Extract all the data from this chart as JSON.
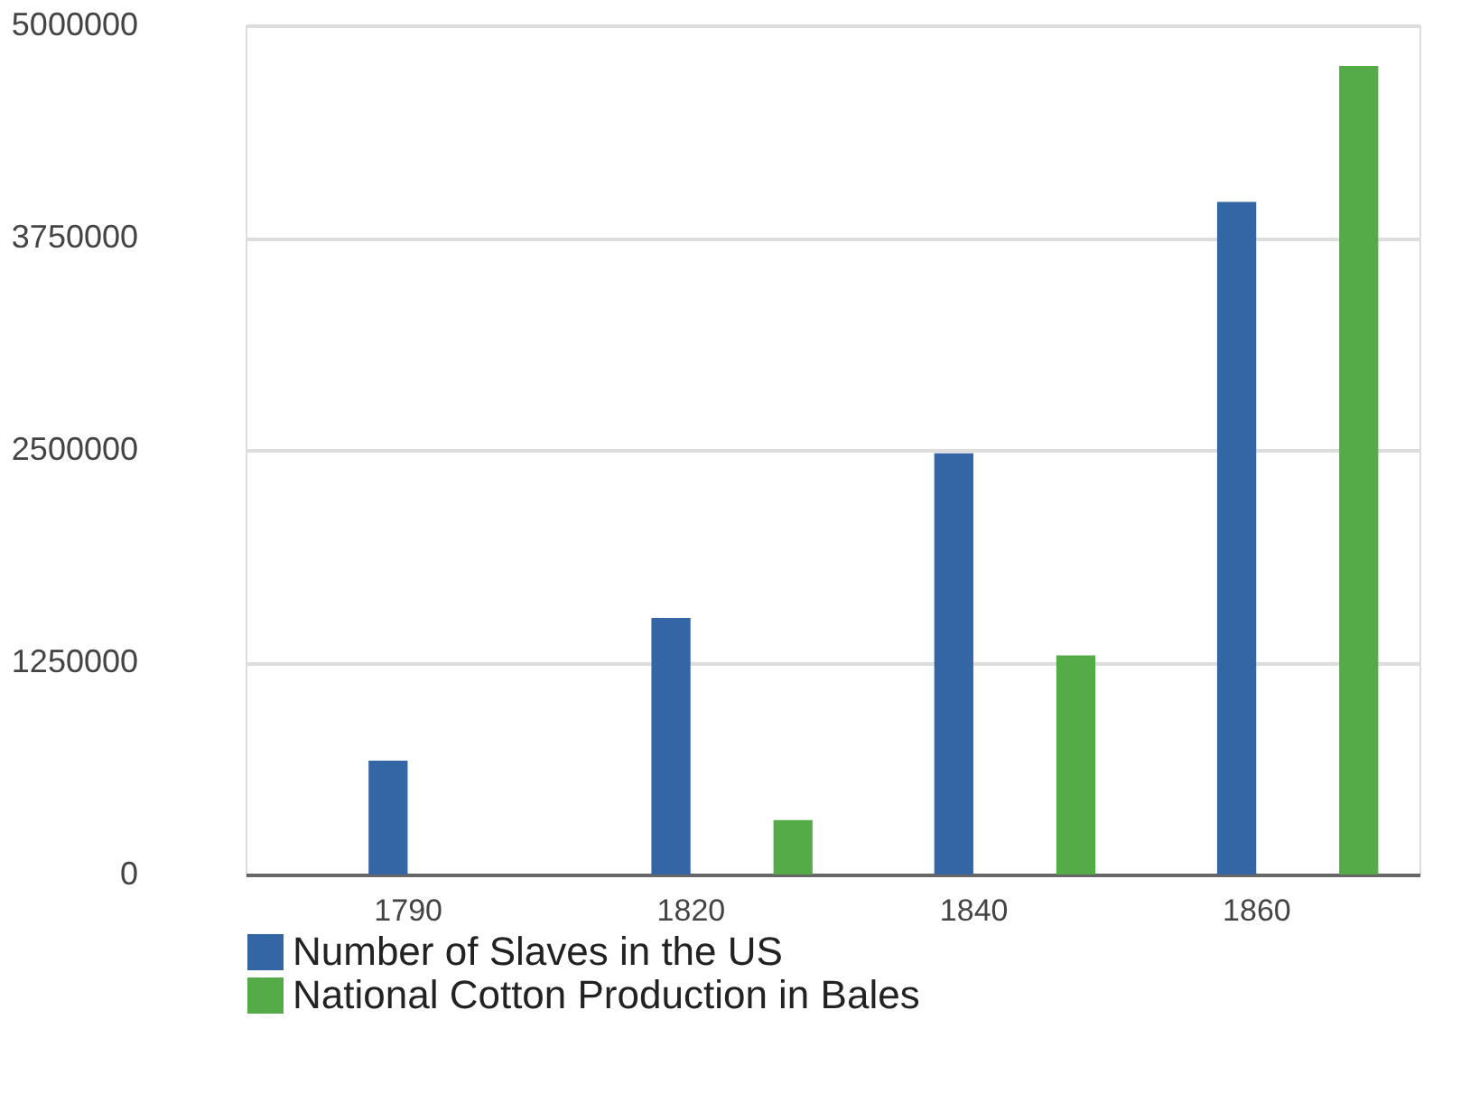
{
  "chart_data": {
    "type": "bar",
    "categories": [
      "1790",
      "1820",
      "1840",
      "1860"
    ],
    "series": [
      {
        "name": "Number of Slaves in the US",
        "color": "#3465a4",
        "values": [
          670000,
          1510000,
          2480000,
          3960000
        ]
      },
      {
        "name": "National Cotton Production in Bales",
        "color": "#55ab47",
        "values": [
          null,
          320000,
          1290000,
          4760000
        ]
      }
    ],
    "ylim": [
      0,
      5000000
    ],
    "yticks": [
      0,
      1250000,
      2500000,
      3750000,
      5000000
    ],
    "grid": "y",
    "legend": "bottom"
  }
}
